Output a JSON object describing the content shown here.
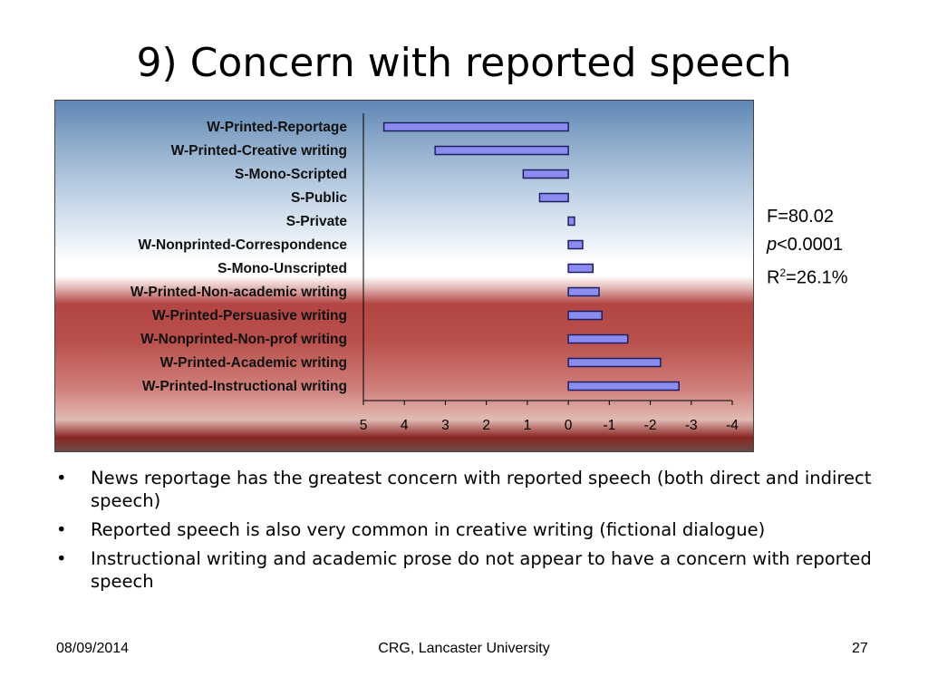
{
  "title": "9) Concern with reported speech",
  "chart_data": {
    "type": "bar",
    "orientation": "horizontal",
    "x_reversed": true,
    "categories": [
      "W-Printed-Reportage",
      "W-Printed-Creative writing",
      "S-Mono-Scripted",
      "S-Public",
      "S-Private",
      "W-Nonprinted-Correspondence",
      "S-Mono-Unscripted",
      "W-Printed-Non-academic writing",
      "W-Printed-Persuasive writing",
      "W-Nonprinted-Non-prof writing",
      "W-Printed-Academic writing",
      "W-Printed-Instructional writing"
    ],
    "values": [
      4.5,
      3.25,
      1.1,
      0.7,
      -0.15,
      -0.35,
      -0.6,
      -0.75,
      -0.82,
      -1.45,
      -2.25,
      -2.7
    ],
    "xlim": [
      5,
      -4
    ],
    "xticks": [
      "5",
      "4",
      "3",
      "2",
      "1",
      "0",
      "-1",
      "-2",
      "-3",
      "-4"
    ],
    "title": "",
    "xlabel": "",
    "ylabel": "",
    "bar_color": "#8a8cf0",
    "legend": "none"
  },
  "stats": {
    "f_value": "F=80.02",
    "p_symbol": "p",
    "p_value": "<0.0001",
    "r_base": "R",
    "r_sup": "2",
    "r_value": "=26.1%"
  },
  "bullets": [
    "News reportage has the greatest concern with reported speech (both direct and indirect speech)",
    "Reported speech is also very common in creative writing (fictional dialogue)",
    "Instructional writing and academic prose do not appear to have a concern with reported speech"
  ],
  "footer": {
    "date": "08/09/2014",
    "org": "CRG, Lancaster University",
    "page": "27"
  }
}
